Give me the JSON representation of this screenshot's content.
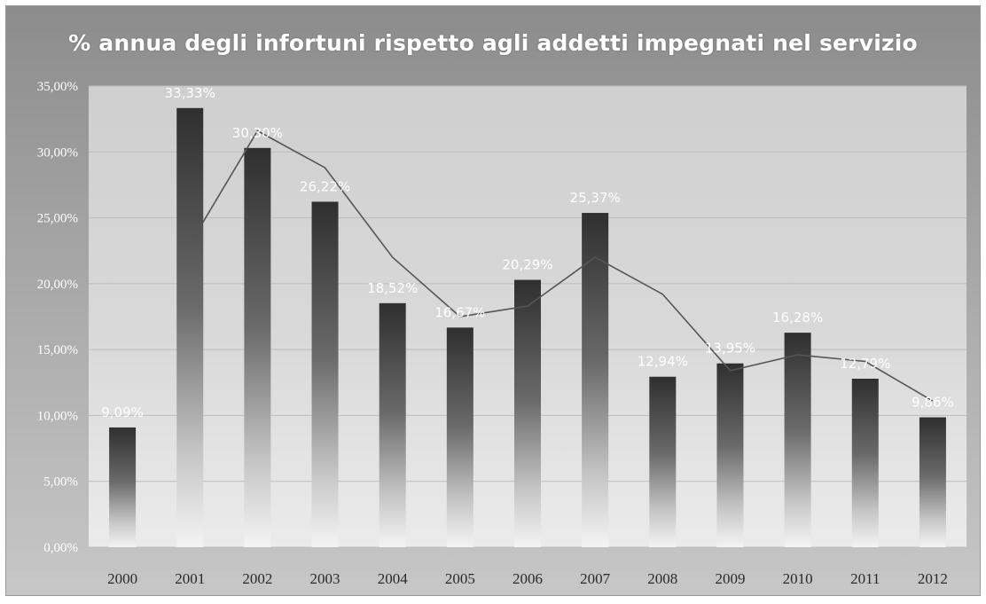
{
  "chart_data": {
    "type": "bar",
    "title": "% annua degli infortuni rispetto agli addetti impegnati nel servizio",
    "xlabel": "",
    "ylabel": "",
    "ylim": [
      0,
      35
    ],
    "yticks": [
      "0,00%",
      "5,00%",
      "10,00%",
      "15,00%",
      "20,00%",
      "25,00%",
      "30,00%",
      "35,00%"
    ],
    "grid": true,
    "legend": "none",
    "categories": [
      "2000",
      "2001",
      "2002",
      "2003",
      "2004",
      "2005",
      "2006",
      "2007",
      "2008",
      "2009",
      "2010",
      "2011",
      "2012"
    ],
    "series": [
      {
        "type": "bar",
        "values": [
          9.09,
          33.33,
          30.3,
          26.22,
          18.52,
          16.67,
          20.29,
          25.37,
          12.94,
          13.95,
          16.28,
          12.79,
          9.86
        ],
        "labels": [
          "9,09%",
          "33,33%",
          "30,30%",
          "26,22%",
          "18,52%",
          "16,67%",
          "20,29%",
          "25,37%",
          "12,94%",
          "13,95%",
          "16,28%",
          "12,79%",
          "9,86%"
        ],
        "color": "#3a3a3a"
      },
      {
        "type": "line",
        "values": [
          null,
          23.0,
          31.6,
          28.8,
          22.0,
          17.5,
          18.3,
          22.0,
          19.2,
          13.4,
          14.6,
          14.1,
          11.1
        ],
        "color": "#555555"
      }
    ]
  }
}
